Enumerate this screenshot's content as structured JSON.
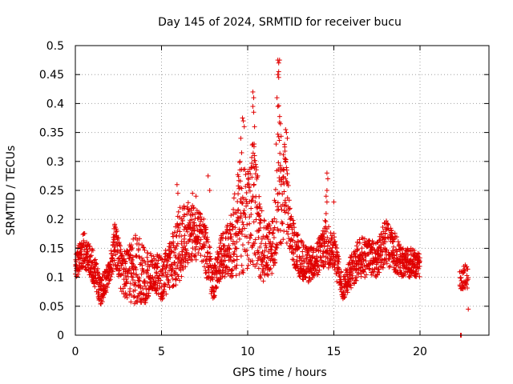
{
  "chart_data": {
    "type": "scatter",
    "title": "Day 145 of 2024, SRMTID for receiver bucu",
    "xlabel": "GPS time / hours",
    "ylabel": "SRMTID / TECUs",
    "xlim": [
      0,
      24
    ],
    "ylim": [
      0,
      0.5
    ],
    "xticks": [
      0,
      5,
      10,
      15,
      20
    ],
    "xtick_labels": [
      "0",
      "5",
      "10",
      "15",
      "20"
    ],
    "yticks": [
      0,
      0.05,
      0.1,
      0.15,
      0.2,
      0.25,
      0.3,
      0.35,
      0.4,
      0.45,
      0.5
    ],
    "ytick_labels": [
      "0",
      "0.05",
      "0.1",
      "0.15",
      "0.2",
      "0.25",
      "0.3",
      "0.35",
      "0.4",
      "0.45",
      "0.5"
    ],
    "grid": true,
    "marker": "+",
    "series_color": "#e00000",
    "envelope": [
      [
        0.0,
        0.1,
        0.14
      ],
      [
        0.5,
        0.11,
        0.18
      ],
      [
        1.0,
        0.09,
        0.15
      ],
      [
        1.5,
        0.05,
        0.1
      ],
      [
        2.0,
        0.09,
        0.13
      ],
      [
        2.3,
        0.12,
        0.2
      ],
      [
        2.7,
        0.07,
        0.14
      ],
      [
        3.0,
        0.06,
        0.15
      ],
      [
        3.5,
        0.05,
        0.18
      ],
      [
        4.0,
        0.05,
        0.15
      ],
      [
        4.5,
        0.08,
        0.14
      ],
      [
        5.0,
        0.06,
        0.14
      ],
      [
        5.5,
        0.08,
        0.16
      ],
      [
        6.0,
        0.09,
        0.22
      ],
      [
        6.5,
        0.12,
        0.23
      ],
      [
        7.0,
        0.13,
        0.22
      ],
      [
        7.5,
        0.11,
        0.2
      ],
      [
        8.0,
        0.06,
        0.12
      ],
      [
        8.5,
        0.1,
        0.18
      ],
      [
        9.0,
        0.1,
        0.2
      ],
      [
        9.5,
        0.1,
        0.3
      ],
      [
        10.0,
        0.11,
        0.28
      ],
      [
        10.3,
        0.12,
        0.36
      ],
      [
        10.7,
        0.1,
        0.25
      ],
      [
        11.0,
        0.09,
        0.19
      ],
      [
        11.5,
        0.11,
        0.2
      ],
      [
        11.8,
        0.16,
        0.4
      ],
      [
        12.2,
        0.15,
        0.32
      ],
      [
        12.5,
        0.13,
        0.21
      ],
      [
        13.0,
        0.1,
        0.17
      ],
      [
        13.5,
        0.09,
        0.15
      ],
      [
        14.0,
        0.1,
        0.16
      ],
      [
        14.5,
        0.12,
        0.2
      ],
      [
        15.0,
        0.11,
        0.18
      ],
      [
        15.5,
        0.06,
        0.1
      ],
      [
        16.0,
        0.08,
        0.14
      ],
      [
        16.5,
        0.1,
        0.17
      ],
      [
        17.0,
        0.1,
        0.17
      ],
      [
        17.5,
        0.1,
        0.16
      ],
      [
        18.0,
        0.12,
        0.2
      ],
      [
        18.5,
        0.11,
        0.18
      ],
      [
        19.0,
        0.1,
        0.15
      ],
      [
        19.5,
        0.1,
        0.15
      ],
      [
        20.0,
        0.1,
        0.14
      ],
      [
        22.3,
        0.08,
        0.11
      ],
      [
        22.8,
        0.08,
        0.13
      ]
    ],
    "notable_points": [
      [
        9.7,
        0.375
      ],
      [
        9.75,
        0.37
      ],
      [
        9.8,
        0.36
      ],
      [
        9.6,
        0.34
      ],
      [
        9.65,
        0.315
      ],
      [
        9.55,
        0.3
      ],
      [
        10.3,
        0.42
      ],
      [
        10.35,
        0.41
      ],
      [
        10.3,
        0.395
      ],
      [
        10.35,
        0.385
      ],
      [
        10.4,
        0.36
      ],
      [
        10.3,
        0.33
      ],
      [
        10.4,
        0.31
      ],
      [
        10.2,
        0.29
      ],
      [
        11.75,
        0.475
      ],
      [
        11.8,
        0.47
      ],
      [
        11.85,
        0.475
      ],
      [
        11.8,
        0.455
      ],
      [
        11.75,
        0.45
      ],
      [
        11.8,
        0.445
      ],
      [
        11.7,
        0.41
      ],
      [
        11.75,
        0.395
      ],
      [
        11.9,
        0.365
      ],
      [
        11.65,
        0.33
      ],
      [
        12.2,
        0.355
      ],
      [
        12.25,
        0.35
      ],
      [
        12.3,
        0.34
      ],
      [
        12.15,
        0.325
      ],
      [
        12.2,
        0.3
      ],
      [
        12.1,
        0.285
      ],
      [
        12.25,
        0.265
      ],
      [
        14.6,
        0.28
      ],
      [
        14.65,
        0.27
      ],
      [
        14.6,
        0.25
      ],
      [
        14.55,
        0.24
      ],
      [
        14.6,
        0.23
      ],
      [
        14.55,
        0.21
      ],
      [
        15.0,
        0.23
      ],
      [
        7.7,
        0.275
      ],
      [
        7.8,
        0.25
      ],
      [
        5.9,
        0.26
      ],
      [
        5.95,
        0.245
      ],
      [
        6.8,
        0.245
      ],
      [
        7.0,
        0.24
      ],
      [
        22.35,
        0.0
      ],
      [
        22.4,
        0.0
      ],
      [
        22.8,
        0.045
      ]
    ]
  }
}
